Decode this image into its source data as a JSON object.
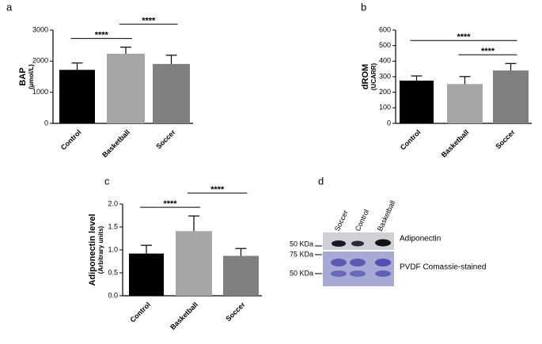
{
  "chart_data": [
    {
      "type": "bar",
      "panel_label": "a",
      "ylabel": "BAP",
      "ylabel_sub": "(μmol/L)",
      "categories": [
        "Control",
        "Basketball",
        "Soccer"
      ],
      "values": [
        1720,
        2240,
        1910
      ],
      "errors": [
        220,
        210,
        280
      ],
      "colors": [
        "#000000",
        "#a6a6a8",
        "#7f7f7f"
      ],
      "ylim": [
        0,
        3000
      ],
      "yticks": [
        0,
        1000,
        2000,
        3000
      ],
      "annotations": [
        {
          "from": 0,
          "to": 1,
          "label": "****"
        },
        {
          "from": 1,
          "to": 2,
          "label": "****"
        }
      ]
    },
    {
      "type": "bar",
      "panel_label": "b",
      "ylabel": "dROM",
      "ylabel_sub": "(UCARR)",
      "categories": [
        "Control",
        "Basketball",
        "Soccer"
      ],
      "values": [
        275,
        253,
        340
      ],
      "errors": [
        30,
        48,
        45
      ],
      "colors": [
        "#000000",
        "#a6a6a8",
        "#7f7f7f"
      ],
      "ylim": [
        0,
        600
      ],
      "yticks": [
        0,
        100,
        200,
        300,
        400,
        500,
        600
      ],
      "annotations": [
        {
          "from": 1,
          "to": 2,
          "label": "****"
        },
        {
          "from": 0,
          "to": 2,
          "label": "****"
        }
      ]
    },
    {
      "type": "bar",
      "panel_label": "c",
      "ylabel": "Adiponectin level",
      "ylabel_sub": "(Arbitrary units)",
      "categories": [
        "Control",
        "Basketball",
        "Soccer"
      ],
      "values": [
        0.92,
        1.41,
        0.87
      ],
      "errors": [
        0.18,
        0.33,
        0.16
      ],
      "colors": [
        "#000000",
        "#a6a6a8",
        "#7f7f7f"
      ],
      "ylim": [
        0,
        2.0
      ],
      "yticks": [
        {
          "value": 0,
          "label": "0.0"
        },
        0.5,
        {
          "value": 1,
          "label": "1.0"
        },
        1.5,
        {
          "value": 2,
          "label": "2.0"
        }
      ],
      "annotations": [
        {
          "from": 0,
          "to": 1,
          "label": "****"
        },
        {
          "from": 1,
          "to": 2,
          "label": "****"
        }
      ]
    }
  ],
  "blot": {
    "panel_label": "d",
    "lanes": [
      "Soccer",
      "Control",
      "Basketball"
    ],
    "markers": [
      "50 KDa",
      "75 KDa",
      "50 KDa"
    ],
    "bands": [
      "Adiponectin",
      "PVDF Comassie-stained"
    ]
  }
}
